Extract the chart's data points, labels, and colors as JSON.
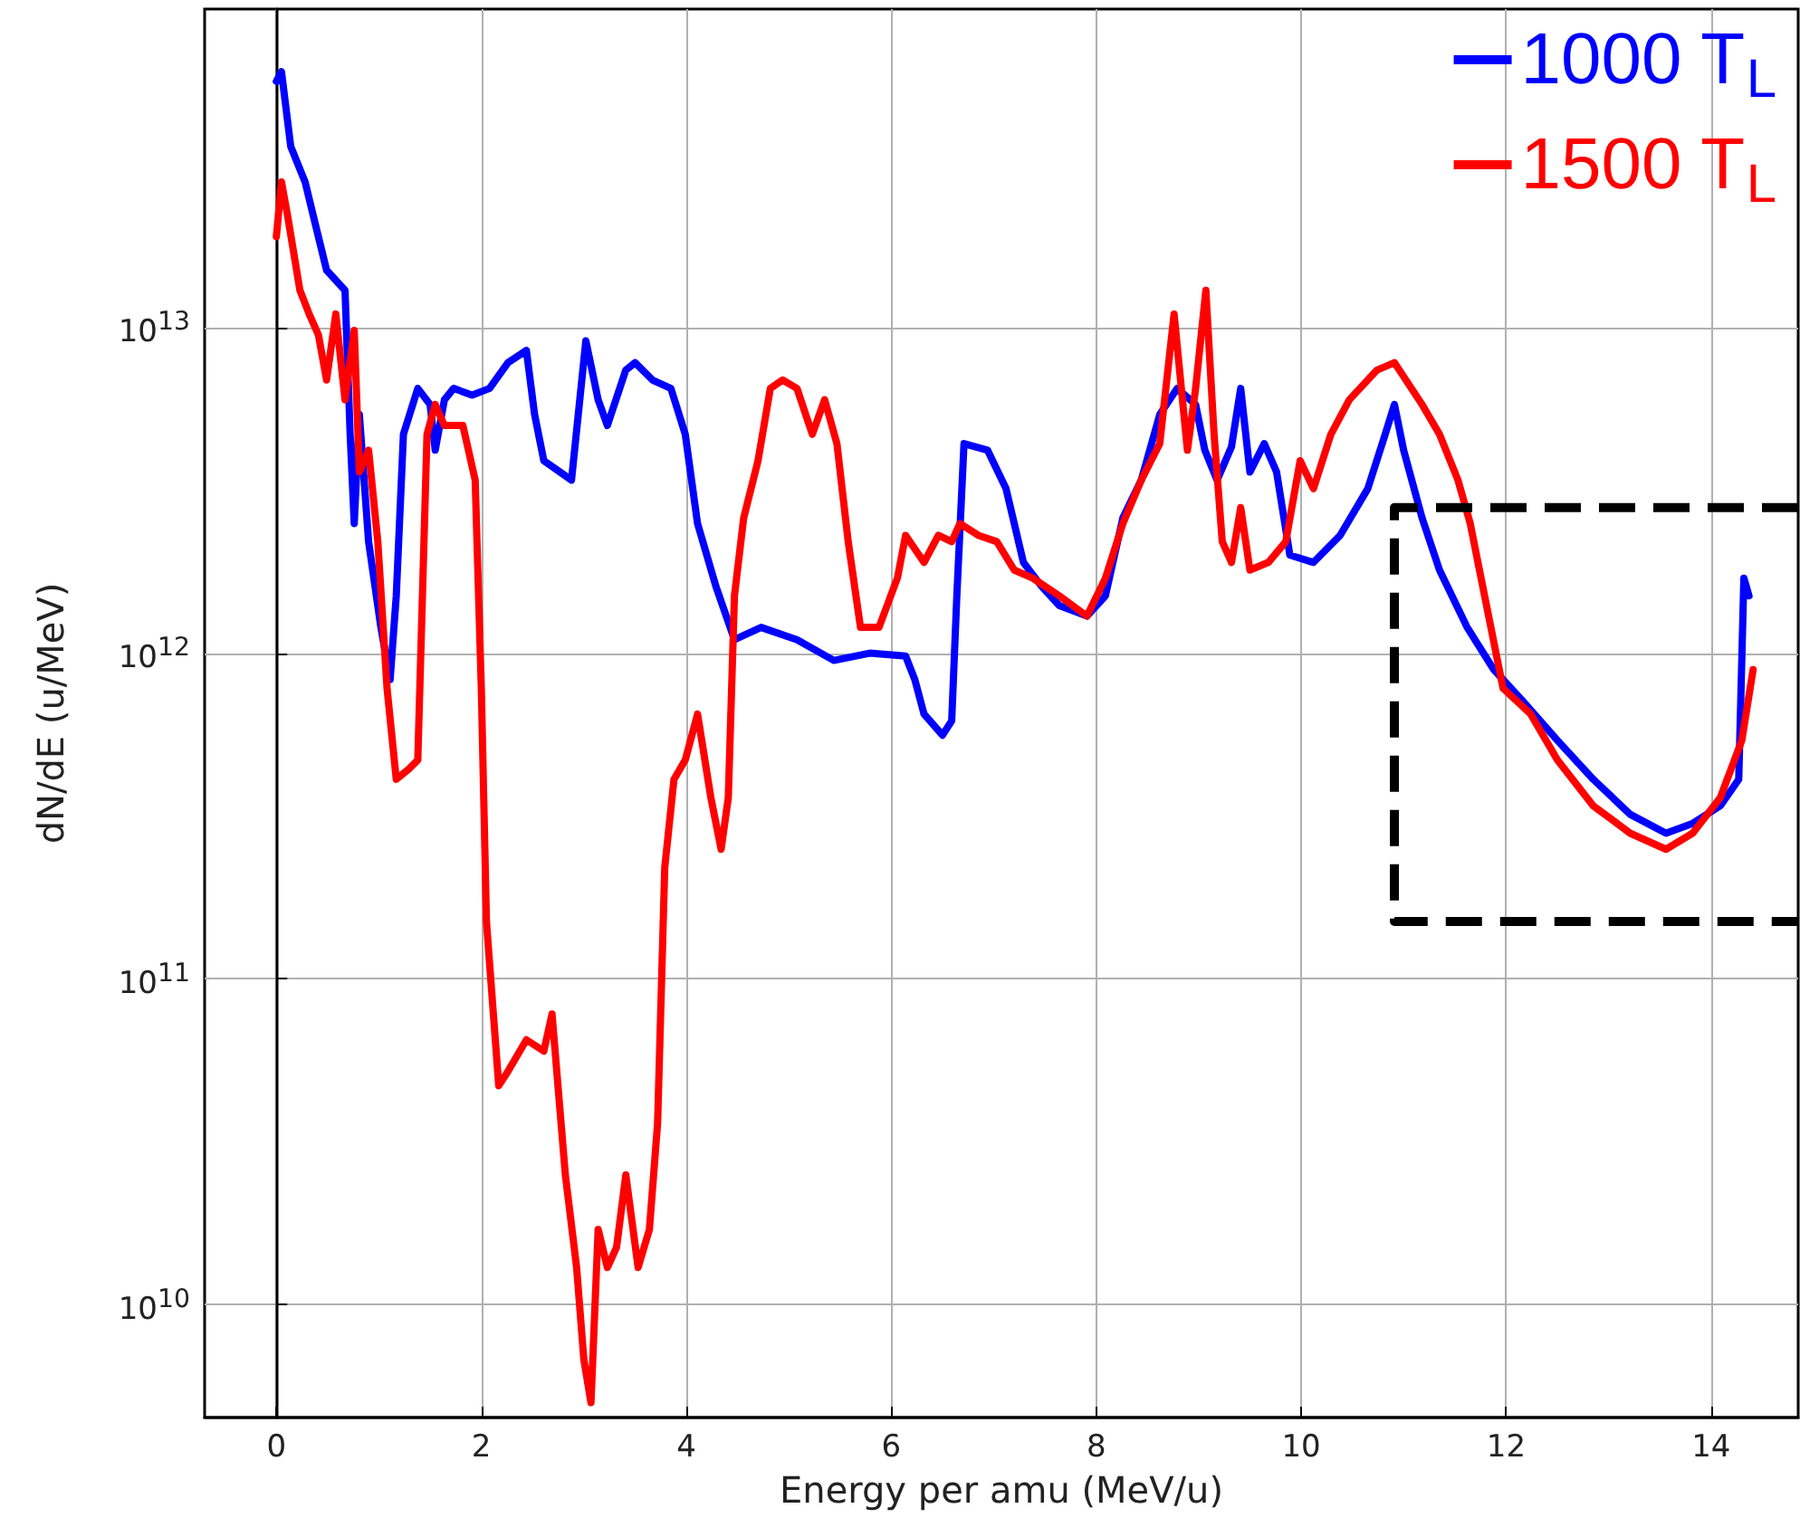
{
  "chart_data": {
    "type": "line",
    "xlabel": "Energy per amu (MeV/u)",
    "ylabel": "dN/dE (u/MeV)",
    "log": "y",
    "grid": true,
    "legend": "top right",
    "xlim": [
      -0.7,
      14.85
    ],
    "xticks": [
      0,
      2,
      4,
      6,
      8,
      10,
      12,
      14
    ],
    "ylim": [
      4500000000.0,
      95000000000000.0
    ],
    "yticks": [
      {
        "value": 10000000000.0,
        "label": "10$^{10}$"
      },
      {
        "value": 100000000000.0,
        "label": "10$^{11}$"
      },
      {
        "value": 1000000000000.0,
        "label": "10$^{12}$"
      },
      {
        "value": 10000000000000.0,
        "label": "10$^{13}$"
      }
    ],
    "series": [
      {
        "name": "1000 T$_{L}$",
        "color": "#0000ff",
        "x": [
          0,
          0.05,
          0.14,
          0.28,
          0.41,
          0.49,
          0.67,
          0.72,
          0.76,
          0.81,
          0.9,
          1.02,
          1.11,
          1.17,
          1.24,
          1.38,
          1.5,
          1.55,
          1.64,
          1.73,
          1.91,
          2.08,
          2.26,
          2.44,
          2.52,
          2.61,
          2.88,
          3.02,
          3.14,
          3.23,
          3.41,
          3.5,
          3.67,
          3.85,
          3.99,
          4.11,
          4.29,
          4.47,
          4.73,
          5.08,
          5.44,
          5.79,
          6.14,
          6.23,
          6.32,
          6.5,
          6.59,
          6.64,
          6.71,
          6.94,
          7.12,
          7.29,
          7.47,
          7.64,
          7.91,
          8.09,
          8.26,
          8.44,
          8.62,
          8.79,
          8.97,
          9.06,
          9.18,
          9.32,
          9.41,
          9.5,
          9.64,
          9.76,
          9.89,
          10.12,
          10.38,
          10.65,
          10.82,
          10.91,
          11.0,
          11.18,
          11.35,
          11.62,
          11.88,
          12.15,
          12.5,
          12.85,
          13.21,
          13.56,
          13.82,
          14.09,
          14.27,
          14.32,
          14.37
        ],
        "values": [
          57000000000000.0,
          61000000000000.0,
          36000000000000.0,
          28000000000000.0,
          19000000000000.0,
          15000000000000.0,
          13000000000000.0,
          4700000000000.0,
          2500000000000.0,
          5400000000000.0,
          2200000000000.0,
          1200000000000.0,
          830000000000.0,
          1500000000000.0,
          4700000000000.0,
          6500000000000.0,
          5800000000000.0,
          4200000000000.0,
          6000000000000.0,
          6500000000000.0,
          6200000000000.0,
          6500000000000.0,
          7800000000000.0,
          8500000000000.0,
          5400000000000.0,
          3900000000000.0,
          3400000000000.0,
          9100000000000.0,
          6000000000000.0,
          5000000000000.0,
          7400000000000.0,
          7800000000000.0,
          6900000000000.0,
          6500000000000.0,
          4700000000000.0,
          2500000000000.0,
          1600000000000.0,
          1100000000000.0,
          1200000000000.0,
          1100000000000.0,
          950000000000.0,
          1000000000000.0,
          980000000000.0,
          830000000000.0,
          650000000000.0,
          560000000000.0,
          620000000000.0,
          1500000000000.0,
          4400000000000.0,
          4200000000000.0,
          3200000000000.0,
          1900000000000.0,
          1600000000000.0,
          1400000000000.0,
          1300000000000.0,
          1500000000000.0,
          2600000000000.0,
          3400000000000.0,
          5400000000000.0,
          6500000000000.0,
          5800000000000.0,
          4200000000000.0,
          3400000000000.0,
          4300000000000.0,
          6500000000000.0,
          3600000000000.0,
          4400000000000.0,
          3600000000000.0,
          2000000000000.0,
          1900000000000.0,
          2300000000000.0,
          3200000000000.0,
          4700000000000.0,
          5800000000000.0,
          4200000000000.0,
          2600000000000.0,
          1800000000000.0,
          1200000000000.0,
          890000000000.0,
          720000000000.0,
          540000000000.0,
          410000000000.0,
          320000000000.0,
          280000000000.0,
          300000000000.0,
          340000000000.0,
          410000000000.0,
          1700000000000.0,
          1500000000000.0
        ]
      },
      {
        "name": "1500 T$_{L}$",
        "color": "#ff0000",
        "x": [
          0,
          0.05,
          0.11,
          0.23,
          0.32,
          0.41,
          0.49,
          0.58,
          0.67,
          0.76,
          0.81,
          0.9,
          0.99,
          1.08,
          1.17,
          1.29,
          1.38,
          1.47,
          1.55,
          1.64,
          1.82,
          1.94,
          2.0,
          2.05,
          2.17,
          2.26,
          2.44,
          2.61,
          2.69,
          2.82,
          2.93,
          3.0,
          3.07,
          3.14,
          3.23,
          3.32,
          3.41,
          3.53,
          3.64,
          3.72,
          3.79,
          3.88,
          3.99,
          4.11,
          4.24,
          4.34,
          4.41,
          4.47,
          4.56,
          4.7,
          4.82,
          4.94,
          5.08,
          5.23,
          5.35,
          5.47,
          5.58,
          5.7,
          5.88,
          6.06,
          6.14,
          6.32,
          6.46,
          6.59,
          6.67,
          6.85,
          7.03,
          7.2,
          7.38,
          7.64,
          7.91,
          8.09,
          8.26,
          8.44,
          8.62,
          8.76,
          8.89,
          8.97,
          9.07,
          9.15,
          9.23,
          9.32,
          9.41,
          9.5,
          9.68,
          9.85,
          9.99,
          10.12,
          10.29,
          10.47,
          10.74,
          10.91,
          11.18,
          11.35,
          11.53,
          11.65,
          11.79,
          11.97,
          12.24,
          12.5,
          12.85,
          13.21,
          13.56,
          13.82,
          14.09,
          14.3,
          14.41
        ],
        "values": [
          19000000000000.0,
          28000000000000.0,
          22000000000000.0,
          13000000000000.0,
          11000000000000.0,
          9500000000000.0,
          6900000000000.0,
          11000000000000.0,
          6000000000000.0,
          9800000000000.0,
          3600000000000.0,
          4200000000000.0,
          2200000000000.0,
          780000000000.0,
          410000000000.0,
          440000000000.0,
          470000000000.0,
          4700000000000.0,
          5800000000000.0,
          5000000000000.0,
          5000000000000.0,
          3400000000000.0,
          780000000000.0,
          150000000000.0,
          47000000000.0,
          52000000000.0,
          65000000000.0,
          60000000000.0,
          78000000000.0,
          25000000000.0,
          13000000000.0,
          6800000000.0,
          5000000000.0,
          17000000000.0,
          13000000000.0,
          15000000000.0,
          25000000000.0,
          13000000000.0,
          17000000000.0,
          36000000000.0,
          220000000000.0,
          410000000000.0,
          470000000000.0,
          650000000000.0,
          360000000000.0,
          250000000000.0,
          360000000000.0,
          1500000000000.0,
          2600000000000.0,
          3900000000000.0,
          6500000000000.0,
          6900000000000.0,
          6500000000000.0,
          4700000000000.0,
          6000000000000.0,
          4400000000000.0,
          2200000000000.0,
          1200000000000.0,
          1200000000000.0,
          1700000000000.0,
          2300000000000.0,
          1900000000000.0,
          2300000000000.0,
          2200000000000.0,
          2500000000000.0,
          2300000000000.0,
          2200000000000.0,
          1800000000000.0,
          1700000000000.0,
          1500000000000.0,
          1300000000000.0,
          1700000000000.0,
          2500000000000.0,
          3400000000000.0,
          4400000000000.0,
          11000000000000.0,
          4200000000000.0,
          6500000000000.0,
          13000000000000.0,
          4700000000000.0,
          2200000000000.0,
          1900000000000.0,
          2800000000000.0,
          1800000000000.0,
          1900000000000.0,
          2200000000000.0,
          3900000000000.0,
          3200000000000.0,
          4700000000000.0,
          6000000000000.0,
          7400000000000.0,
          7800000000000.0,
          5800000000000.0,
          4700000000000.0,
          3400000000000.0,
          2500000000000.0,
          1500000000000.0,
          780000000000.0,
          650000000000.0,
          470000000000.0,
          340000000000.0,
          280000000000.0,
          250000000000.0,
          280000000000.0,
          360000000000.0,
          540000000000.0,
          890000000000.0
        ]
      },
      {
        "color": "#000000",
        "line_style": "dashed",
        "x": [
          14.85,
          10.91,
          10.91,
          14.85
        ],
        "values": [
          2800000000000.0,
          2800000000000.0,
          150000000000.0,
          150000000000.0
        ]
      }
    ]
  }
}
